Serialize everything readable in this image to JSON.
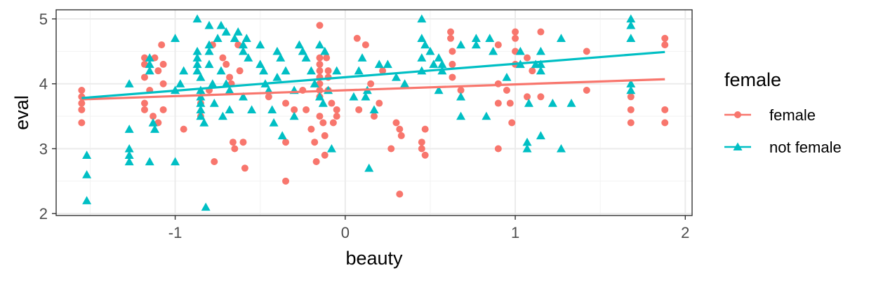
{
  "chart_data": {
    "type": "scatter",
    "xlabel": "beauty",
    "ylabel": "eval",
    "xlim": [
      -1.7,
      2.04
    ],
    "ylim": [
      1.97,
      5.14
    ],
    "x_ticks": [
      -1,
      0,
      1,
      2
    ],
    "y_ticks": [
      2,
      3,
      4,
      5
    ],
    "x_tick_labels": [
      "-1",
      "0",
      "1",
      "2"
    ],
    "y_tick_labels": [
      "2",
      "3",
      "4",
      "5"
    ],
    "grid": true,
    "legend": {
      "title": "female",
      "position": "right"
    },
    "series": [
      {
        "name": "female",
        "color": "#F8766D",
        "marker": "circle",
        "fit": {
          "x": [
            -1.55,
            1.88
          ],
          "y": [
            3.76,
            4.07
          ]
        },
        "points": [
          [
            -1.55,
            3.9
          ],
          [
            -1.55,
            3.8
          ],
          [
            -1.55,
            3.7
          ],
          [
            -1.55,
            3.6
          ],
          [
            -1.55,
            3.4
          ],
          [
            -1.18,
            4.4
          ],
          [
            -1.18,
            4.3
          ],
          [
            -1.18,
            4.1
          ],
          [
            -1.18,
            3.7
          ],
          [
            -1.18,
            3.6
          ],
          [
            -1.15,
            3.9
          ],
          [
            -1.13,
            3.5
          ],
          [
            -1.12,
            4.4
          ],
          [
            -1.1,
            4.2
          ],
          [
            -1.1,
            3.4
          ],
          [
            -1.08,
            4.6
          ],
          [
            -1.07,
            4.3
          ],
          [
            -1.07,
            4.0
          ],
          [
            -1.07,
            3.6
          ],
          [
            -0.95,
            3.3
          ],
          [
            -0.85,
            3.7
          ],
          [
            -0.85,
            3.5
          ],
          [
            -0.78,
            4.6
          ],
          [
            -0.77,
            2.8
          ],
          [
            -0.72,
            4.4
          ],
          [
            -0.7,
            4.3
          ],
          [
            -0.68,
            4.1
          ],
          [
            -0.67,
            4.0
          ],
          [
            -0.66,
            3.1
          ],
          [
            -0.65,
            3.0
          ],
          [
            -0.63,
            4.6
          ],
          [
            -0.62,
            4.2
          ],
          [
            -0.6,
            3.1
          ],
          [
            -0.59,
            2.7
          ],
          [
            -0.35,
            2.5
          ],
          [
            -0.35,
            3.1
          ],
          [
            -0.35,
            3.7
          ],
          [
            -0.3,
            3.6
          ],
          [
            -0.25,
            3.9
          ],
          [
            -0.23,
            3.6
          ],
          [
            -0.2,
            3.3
          ],
          [
            -0.18,
            3.1
          ],
          [
            -0.17,
            2.8
          ],
          [
            -0.15,
            4.9
          ],
          [
            -0.15,
            4.4
          ],
          [
            -0.15,
            4.3
          ],
          [
            -0.15,
            4.2
          ],
          [
            -0.15,
            4.1
          ],
          [
            -0.15,
            4.0
          ],
          [
            -0.15,
            3.9
          ],
          [
            -0.15,
            3.8
          ],
          [
            -0.15,
            3.5
          ],
          [
            -0.13,
            3.4
          ],
          [
            -0.12,
            3.2
          ],
          [
            -0.12,
            2.9
          ],
          [
            -0.11,
            4.4
          ],
          [
            -0.1,
            4.2
          ],
          [
            -0.1,
            4.1
          ],
          [
            -0.1,
            3.9
          ],
          [
            -0.08,
            3.7
          ],
          [
            -0.07,
            3.4
          ],
          [
            -0.05,
            3.6
          ],
          [
            0.07,
            4.7
          ],
          [
            0.08,
            3.6
          ],
          [
            0.12,
            4.6
          ],
          [
            0.15,
            4.0
          ],
          [
            0.17,
            3.5
          ],
          [
            0.2,
            3.7
          ],
          [
            0.22,
            4.2
          ],
          [
            0.27,
            3.0
          ],
          [
            0.3,
            3.4
          ],
          [
            0.32,
            2.3
          ],
          [
            0.32,
            3.3
          ],
          [
            0.33,
            3.2
          ],
          [
            0.45,
            3.1
          ],
          [
            0.45,
            3.0
          ],
          [
            0.47,
            3.3
          ],
          [
            0.47,
            2.9
          ],
          [
            0.62,
            4.8
          ],
          [
            0.62,
            4.7
          ],
          [
            0.63,
            4.5
          ],
          [
            0.63,
            4.3
          ],
          [
            0.63,
            4.1
          ],
          [
            0.68,
            3.9
          ],
          [
            0.9,
            4.6
          ],
          [
            0.9,
            4.0
          ],
          [
            0.9,
            3.7
          ],
          [
            0.9,
            3.0
          ],
          [
            0.95,
            3.9
          ],
          [
            0.97,
            3.7
          ],
          [
            0.98,
            3.4
          ],
          [
            1.0,
            4.8
          ],
          [
            1.0,
            4.7
          ],
          [
            1.0,
            4.5
          ],
          [
            1.0,
            4.3
          ],
          [
            1.07,
            4.4
          ],
          [
            1.07,
            3.8
          ],
          [
            1.1,
            4.2
          ],
          [
            1.15,
            4.8
          ],
          [
            1.15,
            3.8
          ],
          [
            1.42,
            4.5
          ],
          [
            1.42,
            3.9
          ],
          [
            1.68,
            3.8
          ],
          [
            1.68,
            3.6
          ],
          [
            1.68,
            3.4
          ],
          [
            1.88,
            4.7
          ],
          [
            1.88,
            4.6
          ],
          [
            1.88,
            3.6
          ],
          [
            1.88,
            3.4
          ],
          [
            -0.8,
            3.9
          ],
          [
            -0.45,
            3.8
          ],
          [
            -0.05,
            3.5
          ]
        ]
      },
      {
        "name": "not female",
        "color": "#00BFC4",
        "marker": "triangle",
        "fit": {
          "x": [
            -1.55,
            1.88
          ],
          "y": [
            3.78,
            4.49
          ]
        },
        "points": [
          [
            -1.52,
            2.9
          ],
          [
            -1.52,
            2.6
          ],
          [
            -1.52,
            2.2
          ],
          [
            -1.27,
            4.0
          ],
          [
            -1.27,
            3.3
          ],
          [
            -1.27,
            3.0
          ],
          [
            -1.27,
            2.9
          ],
          [
            -1.27,
            2.8
          ],
          [
            -1.15,
            4.4
          ],
          [
            -1.15,
            4.3
          ],
          [
            -1.15,
            4.2
          ],
          [
            -1.15,
            2.8
          ],
          [
            -1.13,
            3.4
          ],
          [
            -1.12,
            3.3
          ],
          [
            -1.0,
            4.7
          ],
          [
            -1.0,
            3.9
          ],
          [
            -1.0,
            2.8
          ],
          [
            -0.97,
            4.0
          ],
          [
            -0.87,
            5.0
          ],
          [
            -0.87,
            4.5
          ],
          [
            -0.87,
            4.4
          ],
          [
            -0.87,
            4.3
          ],
          [
            -0.87,
            4.2
          ],
          [
            -0.85,
            4.1
          ],
          [
            -0.85,
            3.9
          ],
          [
            -0.85,
            3.8
          ],
          [
            -0.85,
            3.7
          ],
          [
            -0.85,
            3.6
          ],
          [
            -0.85,
            3.5
          ],
          [
            -0.83,
            3.4
          ],
          [
            -0.82,
            2.1
          ],
          [
            -0.8,
            4.9
          ],
          [
            -0.8,
            4.6
          ],
          [
            -0.8,
            4.5
          ],
          [
            -0.8,
            4.3
          ],
          [
            -0.78,
            4.0
          ],
          [
            -0.77,
            3.7
          ],
          [
            -0.75,
            4.7
          ],
          [
            -0.73,
            4.9
          ],
          [
            -0.73,
            4.2
          ],
          [
            -0.72,
            3.5
          ],
          [
            -0.7,
            4.8
          ],
          [
            -0.7,
            4.0
          ],
          [
            -0.68,
            3.9
          ],
          [
            -0.68,
            3.6
          ],
          [
            -0.65,
            4.7
          ],
          [
            -0.63,
            4.8
          ],
          [
            -0.6,
            4.5
          ],
          [
            -0.6,
            4.6
          ],
          [
            -0.58,
            4.7
          ],
          [
            -0.57,
            4.4
          ],
          [
            -0.55,
            3.6
          ],
          [
            -0.5,
            4.6
          ],
          [
            -0.5,
            4.3
          ],
          [
            -0.48,
            4.2
          ],
          [
            -0.47,
            4.0
          ],
          [
            -0.45,
            3.9
          ],
          [
            -0.43,
            3.6
          ],
          [
            -0.42,
            3.4
          ],
          [
            -0.4,
            4.5
          ],
          [
            -0.38,
            4.4
          ],
          [
            -0.37,
            3.2
          ],
          [
            -0.35,
            4.2
          ],
          [
            -0.3,
            3.9
          ],
          [
            -0.27,
            4.6
          ],
          [
            -0.25,
            4.5
          ],
          [
            -0.23,
            4.4
          ],
          [
            -0.2,
            4.2
          ],
          [
            -0.18,
            4.0
          ],
          [
            -0.15,
            4.6
          ],
          [
            -0.15,
            3.8
          ],
          [
            -0.13,
            3.7
          ],
          [
            -0.12,
            4.5
          ],
          [
            -0.1,
            3.9
          ],
          [
            -0.08,
            3.0
          ],
          [
            -0.05,
            4.2
          ],
          [
            0.08,
            4.2
          ],
          [
            0.1,
            4.4
          ],
          [
            0.12,
            3.8
          ],
          [
            0.13,
            3.9
          ],
          [
            0.14,
            2.7
          ],
          [
            0.17,
            3.6
          ],
          [
            0.2,
            4.3
          ],
          [
            0.25,
            4.3
          ],
          [
            0.3,
            4.1
          ],
          [
            0.45,
            5.0
          ],
          [
            0.45,
            4.7
          ],
          [
            0.45,
            4.4
          ],
          [
            0.45,
            4.2
          ],
          [
            0.47,
            4.6
          ],
          [
            0.5,
            4.5
          ],
          [
            0.52,
            4.3
          ],
          [
            0.55,
            4.4
          ],
          [
            0.57,
            4.2
          ],
          [
            0.57,
            4.3
          ],
          [
            0.68,
            4.6
          ],
          [
            0.68,
            3.8
          ],
          [
            0.68,
            3.5
          ],
          [
            0.77,
            4.7
          ],
          [
            0.77,
            4.6
          ],
          [
            0.83,
            3.5
          ],
          [
            0.85,
            4.7
          ],
          [
            0.87,
            4.5
          ],
          [
            0.95,
            4.1
          ],
          [
            1.03,
            4.5
          ],
          [
            1.03,
            4.3
          ],
          [
            1.07,
            3.1
          ],
          [
            1.07,
            3.0
          ],
          [
            1.08,
            3.7
          ],
          [
            1.12,
            4.3
          ],
          [
            1.15,
            4.5
          ],
          [
            1.15,
            4.3
          ],
          [
            1.15,
            4.2
          ],
          [
            1.15,
            3.2
          ],
          [
            1.22,
            3.7
          ],
          [
            1.27,
            4.7
          ],
          [
            1.27,
            3.0
          ],
          [
            1.33,
            3.7
          ],
          [
            1.68,
            5.0
          ],
          [
            1.68,
            4.9
          ],
          [
            1.68,
            4.7
          ],
          [
            1.68,
            4.0
          ],
          [
            1.68,
            3.9
          ],
          [
            -0.3,
            3.5
          ],
          [
            0.05,
            3.8
          ],
          [
            0.35,
            4.0
          ],
          [
            -0.95,
            4.2
          ],
          [
            -0.6,
            3.8
          ],
          [
            0.55,
            3.9
          ],
          [
            -0.4,
            4.1
          ]
        ]
      }
    ]
  }
}
